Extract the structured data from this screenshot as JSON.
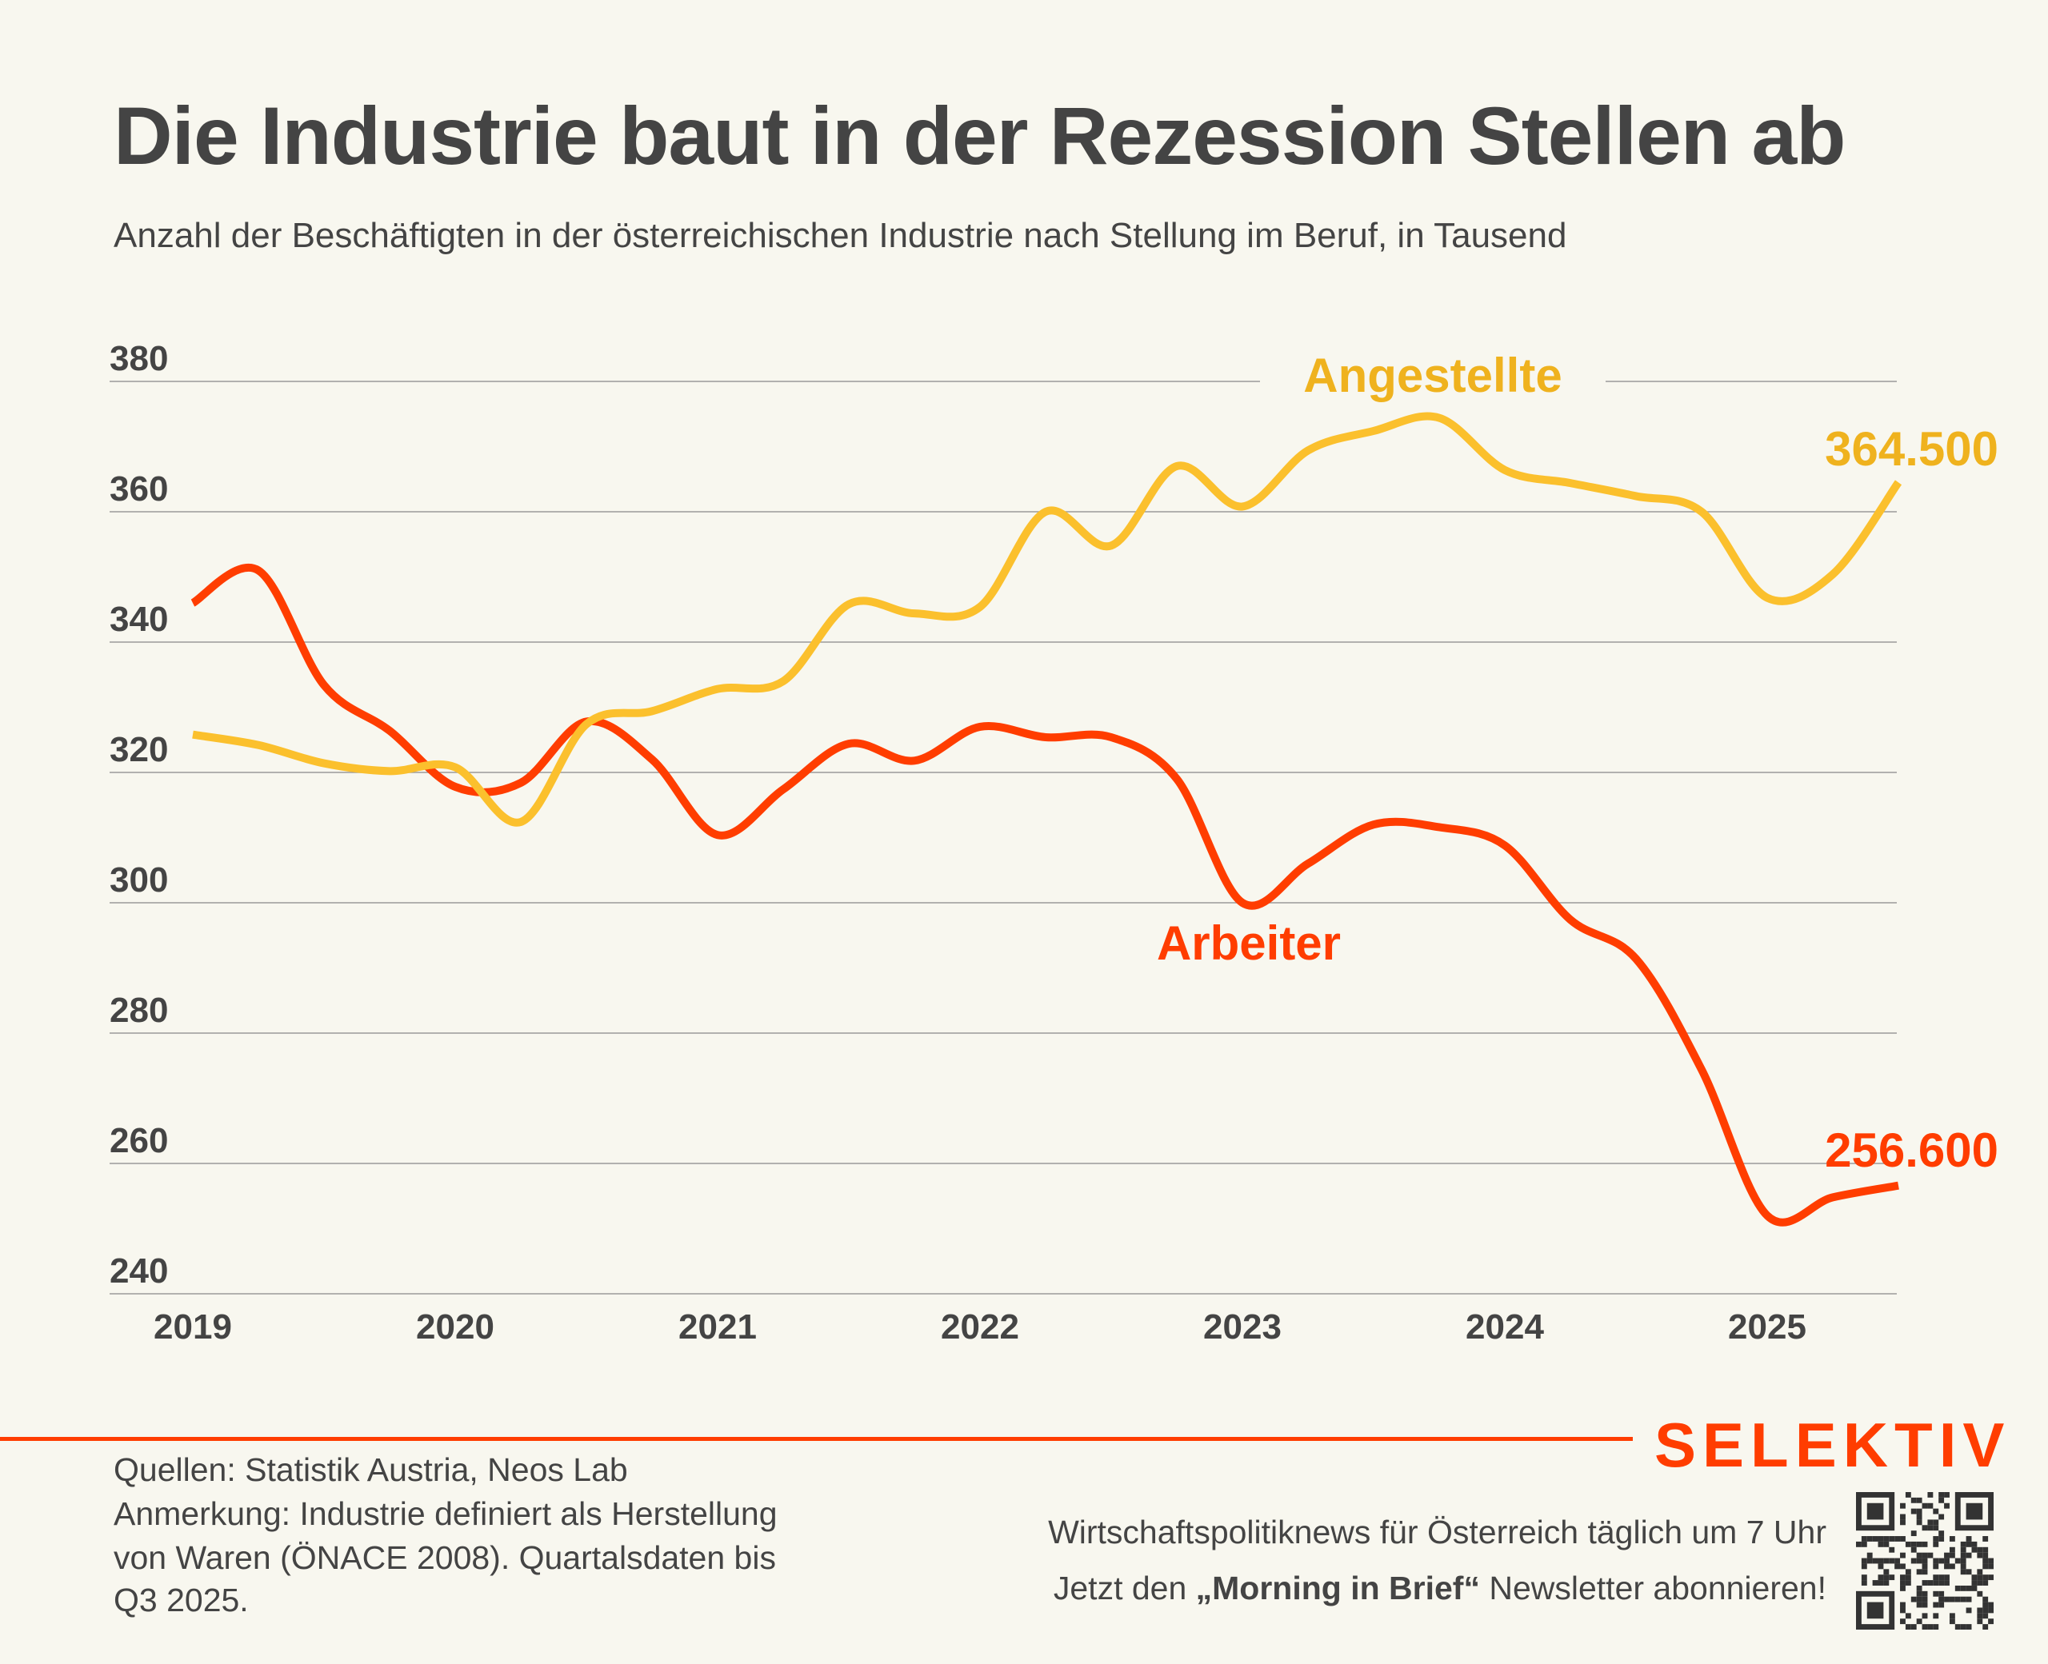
{
  "header": {
    "title": "Die Industrie baut in der Rezession Stellen ab",
    "subtitle": "Anzahl der Beschäftigten in der österreichischen Industrie nach Stellung im Beruf, in Tausend"
  },
  "chart_data": {
    "type": "line",
    "title": "Die Industrie baut in der Rezession Stellen ab",
    "subtitle": "Anzahl der Beschäftigten in der österreichischen Industrie nach Stellung im Beruf, in Tausend",
    "x": [
      "2019-Q1",
      "2019-Q2",
      "2019-Q3",
      "2019-Q4",
      "2020-Q1",
      "2020-Q2",
      "2020-Q3",
      "2020-Q4",
      "2021-Q1",
      "2021-Q2",
      "2021-Q3",
      "2021-Q4",
      "2022-Q1",
      "2022-Q2",
      "2022-Q3",
      "2022-Q4",
      "2023-Q1",
      "2023-Q2",
      "2023-Q3",
      "2023-Q4",
      "2024-Q1",
      "2024-Q2",
      "2024-Q3",
      "2024-Q4",
      "2025-Q1",
      "2025-Q2",
      "2025-Q3"
    ],
    "x_tick_labels": [
      "2019",
      "2020",
      "2021",
      "2022",
      "2023",
      "2024",
      "2025"
    ],
    "y_ticks": [
      240,
      260,
      280,
      300,
      320,
      340,
      360,
      380
    ],
    "ylim": [
      240,
      380
    ],
    "grid": true,
    "series": [
      {
        "name": "Angestellte",
        "color": "#FBC02D",
        "label_color": "#EFB21E",
        "end_label": "364.500",
        "values": [
          325.8,
          324.2,
          321.4,
          320.2,
          320.8,
          312.4,
          327.4,
          329.4,
          332.8,
          334.0,
          345.8,
          344.4,
          345.4,
          360.0,
          354.8,
          367.0,
          360.8,
          369.4,
          372.4,
          374.4,
          366.4,
          364.4,
          362.4,
          360.0,
          346.8,
          350.4,
          364.5
        ]
      },
      {
        "name": "Arbeiter",
        "color": "#FF3D00",
        "label_color": "#FF3D00",
        "end_label": "256.600",
        "values": [
          346.0,
          351.0,
          333.4,
          326.4,
          317.8,
          318.4,
          327.8,
          322.0,
          310.4,
          317.4,
          324.4,
          321.8,
          327.0,
          325.4,
          325.4,
          319.0,
          300.0,
          306.0,
          312.0,
          311.6,
          308.8,
          297.4,
          291.4,
          274.4,
          252.0,
          254.8,
          256.6
        ]
      }
    ]
  },
  "footer": {
    "brand": "SELEKTIV",
    "sources": "Quellen: Statistik Austria, Neos Lab",
    "note_lines": [
      "Anmerkung: Industrie definiert als Herstellung",
      "von Waren (ÖNACE 2008). Quartalsdaten bis",
      "Q3 2025."
    ],
    "promo_line1": "Wirtschaftspolitiknews für Österreich täglich um 7 Uhr",
    "promo_line2_pre": "Jetzt den ",
    "promo_line2_bold": "„Morning in Brief“",
    "promo_line2_post": " Newsletter abonnieren!",
    "qr_icon": "qr-code-icon"
  }
}
